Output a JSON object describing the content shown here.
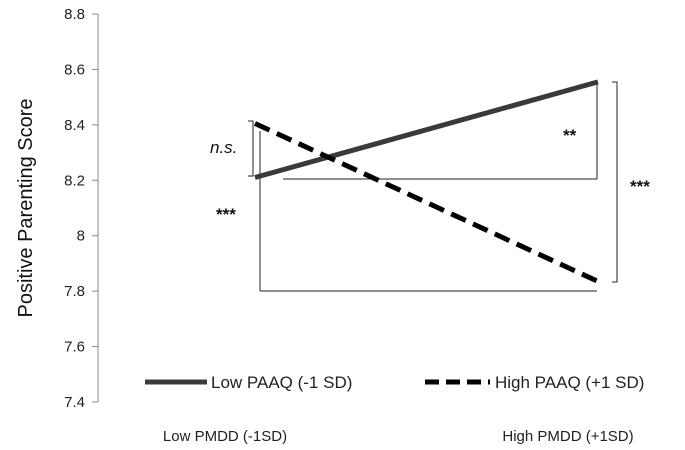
{
  "chart_data": {
    "type": "line",
    "title": "",
    "xlabel": "",
    "ylabel": "Positive Parenting Score",
    "categories": [
      "Low PMDD (-1SD)",
      "High PMDD (+1SD)"
    ],
    "ylim": [
      7.4,
      8.8
    ],
    "yticks": [
      "8.8",
      "8.6",
      "8.4",
      "8.2",
      "8",
      "7.8",
      "7.6",
      "7.4"
    ],
    "grid": false,
    "legend_position": "bottom",
    "series": [
      {
        "name": "Low PAAQ (-1 SD)",
        "values": [
          8.21,
          8.555
        ],
        "style": "solid",
        "color": "#3a3a3a"
      },
      {
        "name": "High PAAQ (+1 SD)",
        "values": [
          8.405,
          7.835
        ],
        "style": "dashed",
        "color": "#000000"
      }
    ],
    "annotations": {
      "ns": "n.s.",
      "left_stars": "***",
      "mid_stars": "**",
      "right_stars": "***"
    }
  }
}
